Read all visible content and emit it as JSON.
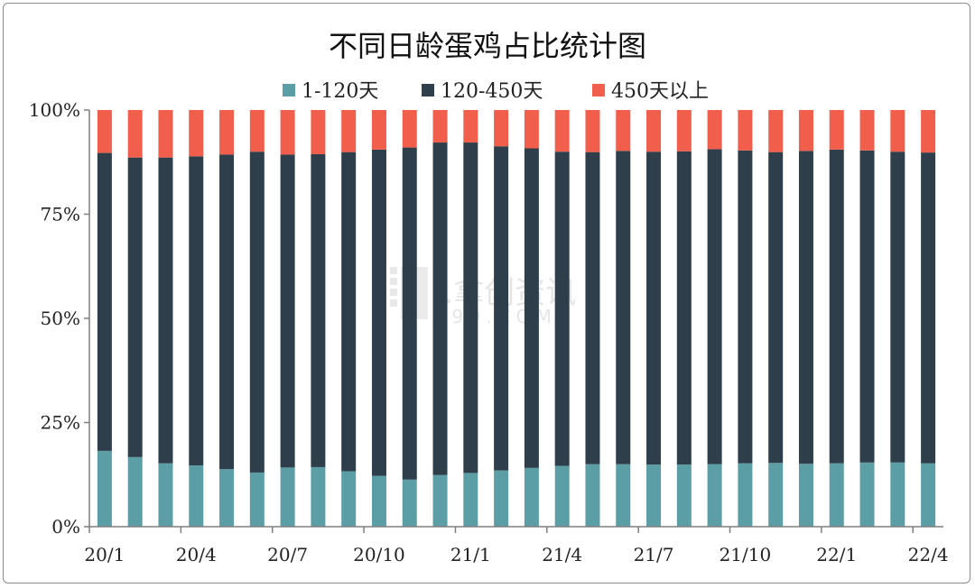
{
  "chart_data": {
    "type": "bar",
    "stacked": true,
    "title": "不同日龄蛋鸡占比统计图",
    "legend_position": "top",
    "yticks": [
      "0%",
      "25%",
      "50%",
      "75%",
      "100%"
    ],
    "ylim": [
      0,
      100
    ],
    "xtick_labels": [
      "20/1",
      "20/4",
      "20/7",
      "20/10",
      "21/1",
      "21/4",
      "21/7",
      "21/10",
      "22/1",
      "22/4"
    ],
    "categories": [
      "20/1",
      "20/2",
      "20/3",
      "20/4",
      "20/5",
      "20/6",
      "20/7",
      "20/8",
      "20/9",
      "20/10",
      "20/11",
      "20/12",
      "21/1",
      "21/2",
      "21/3",
      "21/4",
      "21/5",
      "21/6",
      "21/7",
      "21/8",
      "21/9",
      "21/10",
      "21/11",
      "21/12",
      "22/1",
      "22/2",
      "22/3",
      "22/4"
    ],
    "series": [
      {
        "name": "1-120天",
        "color": "#5b9ea6",
        "values": [
          18.2,
          16.7,
          15.2,
          14.7,
          13.8,
          13.0,
          14.2,
          14.3,
          13.3,
          12.2,
          11.3,
          12.4,
          12.9,
          13.5,
          14.1,
          14.6,
          15.0,
          15.0,
          14.9,
          14.9,
          15.0,
          15.2,
          15.3,
          15.1,
          15.2,
          15.4,
          15.4,
          15.2
        ]
      },
      {
        "name": "120-450天",
        "color": "#2e3f4b",
        "values": [
          71.5,
          71.9,
          73.4,
          74.2,
          75.5,
          77.0,
          75.1,
          75.1,
          76.6,
          78.3,
          79.7,
          79.8,
          79.3,
          77.8,
          76.7,
          75.4,
          74.9,
          75.2,
          75.1,
          75.2,
          75.6,
          75.1,
          74.6,
          75.1,
          75.3,
          74.9,
          74.6,
          74.6
        ]
      },
      {
        "name": "450天以上",
        "color": "#f15f4c",
        "values": [
          10.3,
          11.4,
          11.4,
          11.1,
          10.7,
          10.0,
          10.7,
          10.6,
          10.1,
          9.5,
          9.0,
          7.8,
          7.8,
          8.7,
          9.2,
          10.0,
          10.1,
          9.8,
          10.0,
          9.9,
          9.4,
          9.7,
          10.1,
          9.8,
          9.5,
          9.7,
          10.0,
          10.2
        ]
      }
    ]
  }
}
